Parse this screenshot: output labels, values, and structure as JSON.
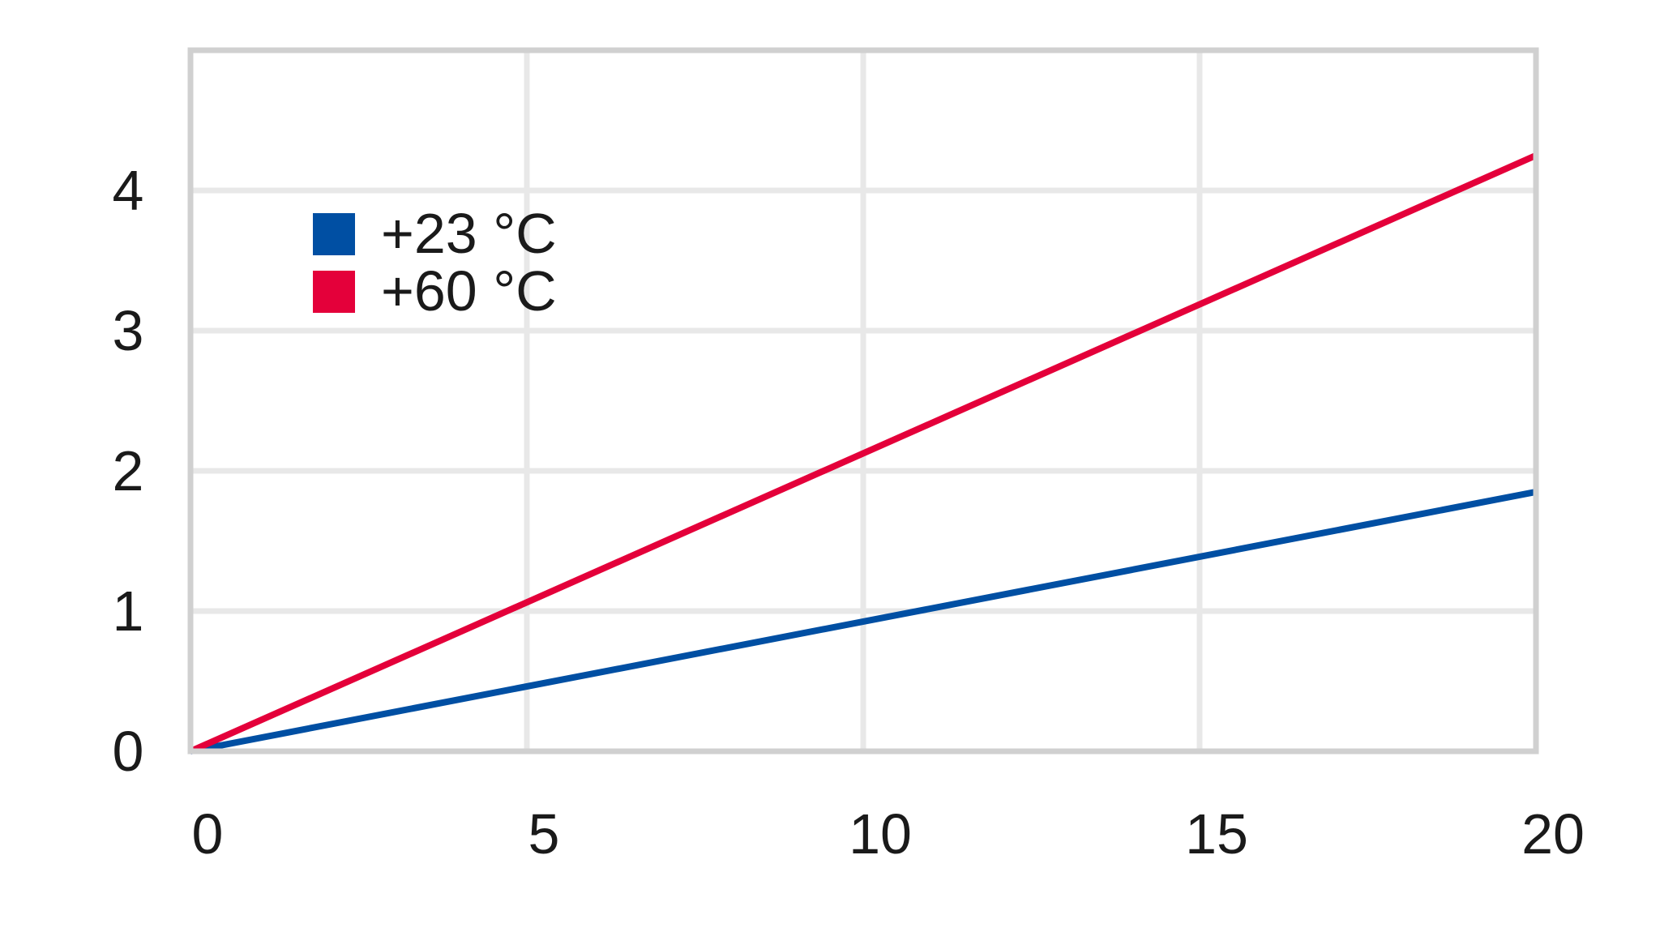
{
  "chart_data": {
    "type": "line",
    "title": "",
    "xlabel": "",
    "ylabel": "",
    "xlim": [
      0,
      20
    ],
    "ylim": [
      0,
      5
    ],
    "x_ticks": [
      "0",
      "5",
      "10",
      "15",
      "20"
    ],
    "y_ticks": [
      "0",
      "1",
      "2",
      "3",
      "4"
    ],
    "grid": true,
    "legend_position": "top-left",
    "series": [
      {
        "name": "+23 °C",
        "color": "#004fa3",
        "x": [
          0,
          20
        ],
        "y": [
          0,
          1.85
        ]
      },
      {
        "name": "+60 °C",
        "color": "#e4003a",
        "x": [
          0,
          20
        ],
        "y": [
          0,
          4.25
        ]
      }
    ]
  }
}
